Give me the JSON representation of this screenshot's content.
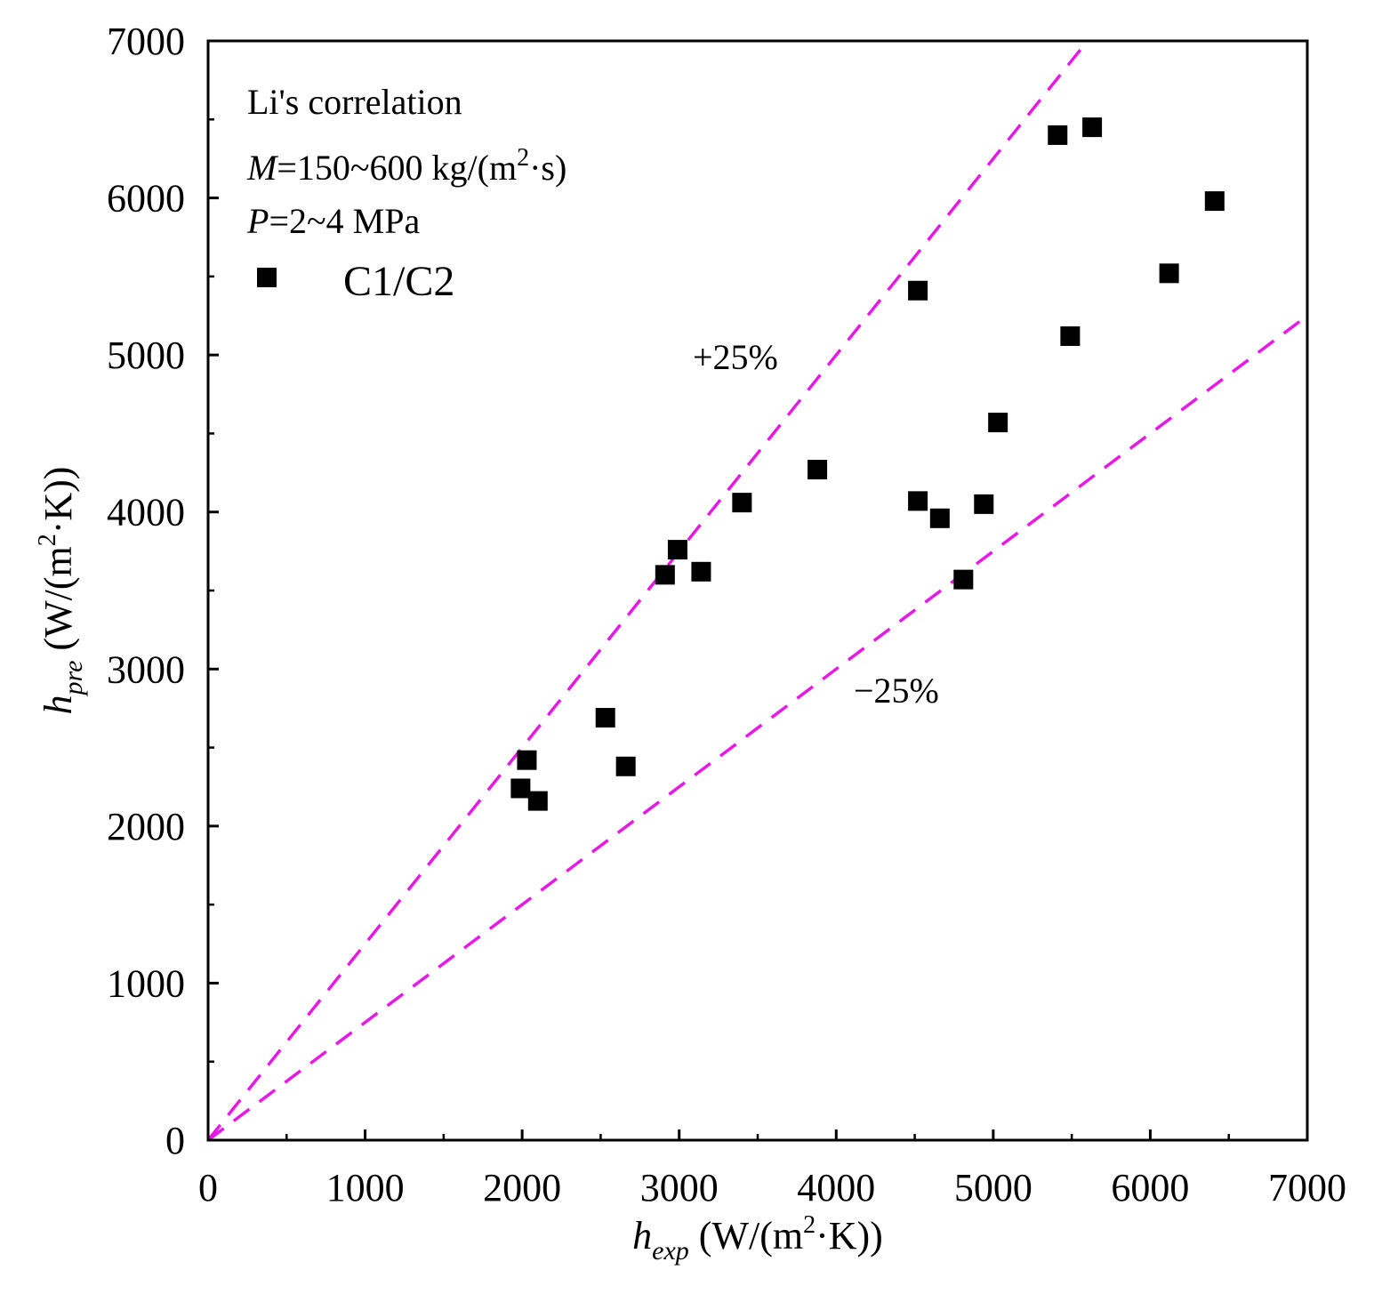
{
  "chart_data": {
    "type": "scatter",
    "title": "",
    "xlabel": {
      "main": "h",
      "sub": "exp",
      "unit_pre": " (W/(m",
      "unit_sup": "2",
      "unit_post": "·K))"
    },
    "ylabel": {
      "main": "h",
      "sub": "pre",
      "unit_pre": " (W/(m",
      "unit_sup": "2",
      "unit_post": "·K))"
    },
    "xlim": [
      0,
      7000
    ],
    "ylim": [
      0,
      7000
    ],
    "xticks": [
      "0",
      "1000",
      "2000",
      "3000",
      "4000",
      "5000",
      "6000",
      "7000"
    ],
    "yticks": [
      "0",
      "1000",
      "2000",
      "3000",
      "4000",
      "5000",
      "6000",
      "7000"
    ],
    "grid": false,
    "annotations": {
      "line1": "Li's correlation",
      "line2_var": "M",
      "line2_text": "=150~600 kg/(m",
      "line2_sup": "2",
      "line2_tail": "·s)",
      "line3_var": "P",
      "line3_text": "=2~4 MPa"
    },
    "legend": {
      "placement": "top-left",
      "label": "C1/C2"
    },
    "reference_lines": [
      {
        "label": "+25%",
        "slope": 1.25,
        "color": "#e619e6",
        "style": "dashed"
      },
      {
        "label": "−25%",
        "slope": 0.75,
        "color": "#e619e6",
        "style": "dashed"
      }
    ],
    "series": [
      {
        "name": "C1/C2",
        "marker": "square",
        "color": "#000000",
        "points": [
          [
            1990,
            2240
          ],
          [
            2030,
            2420
          ],
          [
            2100,
            2160
          ],
          [
            2530,
            2690
          ],
          [
            2660,
            2380
          ],
          [
            2910,
            3600
          ],
          [
            2990,
            3760
          ],
          [
            3140,
            3620
          ],
          [
            3400,
            4060
          ],
          [
            3880,
            4270
          ],
          [
            4520,
            5410
          ],
          [
            4520,
            4070
          ],
          [
            4660,
            3960
          ],
          [
            4810,
            3570
          ],
          [
            4940,
            4050
          ],
          [
            5030,
            4570
          ],
          [
            5410,
            6400
          ],
          [
            5490,
            5120
          ],
          [
            5630,
            6450
          ],
          [
            6120,
            5520
          ],
          [
            6410,
            5980
          ]
        ]
      }
    ]
  }
}
